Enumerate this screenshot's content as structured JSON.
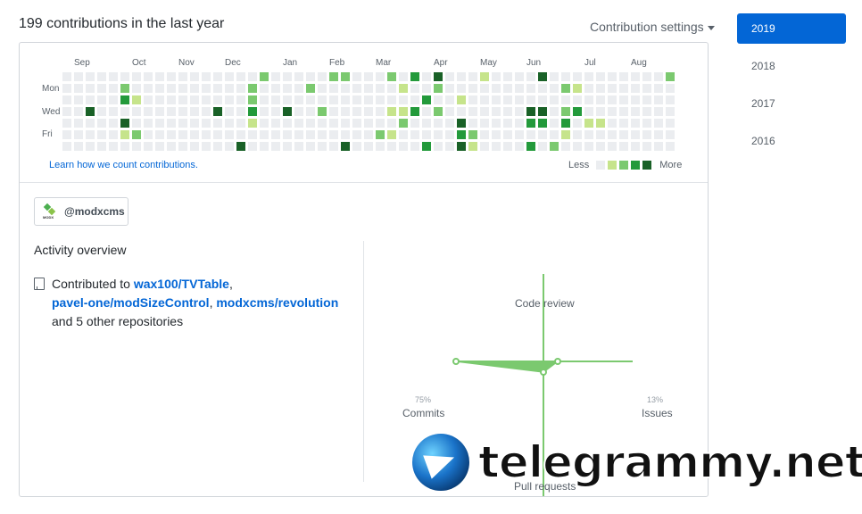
{
  "header": {
    "title": "199 contributions in the last year",
    "settings_label": "Contribution settings"
  },
  "calendar": {
    "months": [
      "Sep",
      "Oct",
      "Nov",
      "Dec",
      "Jan",
      "Feb",
      "Mar",
      "Apr",
      "May",
      "Jun",
      "Jul",
      "Aug"
    ],
    "day_labels": [
      "Mon",
      "Wed",
      "Fri"
    ],
    "learn_link": "Learn how we count contributions.",
    "legend_less": "Less",
    "legend_more": "More",
    "colors": [
      "#ebedf0",
      "#c6e48b",
      "#7bc96f",
      "#239a3b",
      "#196127"
    ],
    "weeks": 53,
    "cells": {
      "2,3": 4,
      "5,1": 2,
      "5,2": 3,
      "5,4": 4,
      "5,5": 1,
      "6,2": 1,
      "6,5": 2,
      "13,3": 4,
      "15,6": 4,
      "16,1": 2,
      "16,2": 2,
      "16,3": 3,
      "16,4": 1,
      "17,0": 2,
      "19,3": 4,
      "21,1": 2,
      "22,3": 2,
      "24,6": 4,
      "23,0": 2,
      "24,0": 2,
      "27,5": 2,
      "28,0": 2,
      "28,3": 1,
      "28,5": 1,
      "29,1": 1,
      "29,3": 1,
      "29,4": 2,
      "30,0": 3,
      "30,3": 3,
      "31,2": 3,
      "31,6": 3,
      "32,0": 4,
      "32,1": 2,
      "32,3": 2,
      "34,2": 1,
      "34,4": 4,
      "34,5": 3,
      "34,6": 4,
      "35,5": 2,
      "35,6": 1,
      "36,0": 1,
      "40,3": 4,
      "40,4": 3,
      "40,6": 3,
      "41,0": 4,
      "41,3": 4,
      "41,4": 3,
      "42,6": 2,
      "43,1": 2,
      "43,3": 2,
      "43,4": 3,
      "43,5": 1,
      "44,1": 1,
      "44,3": 3,
      "45,4": 1,
      "46,4": 1,
      "52,0": 2
    }
  },
  "organization": {
    "logo_text": "MODX",
    "name": "@modxcms"
  },
  "activity": {
    "title": "Activity overview",
    "prefix": "Contributed to ",
    "repo1": "wax100/TVTable",
    "repo2": "pavel-one/modSizeControl",
    "repo3": "modxcms/revolution",
    "suffix": "and 5 other repositories"
  },
  "radar": {
    "code_review_label": "Code review",
    "commits_label": "Commits",
    "commits_pct": "75%",
    "issues_label": "Issues",
    "issues_pct": "13%",
    "pull_requests_label": "Pull requests",
    "commits_value": 75,
    "issues_value": 13,
    "code_review_value": 0,
    "pull_requests_value": 12,
    "color": "#7bc96f"
  },
  "years": [
    "2019",
    "2018",
    "2017",
    "2016"
  ],
  "watermark": "telegrammy.net"
}
